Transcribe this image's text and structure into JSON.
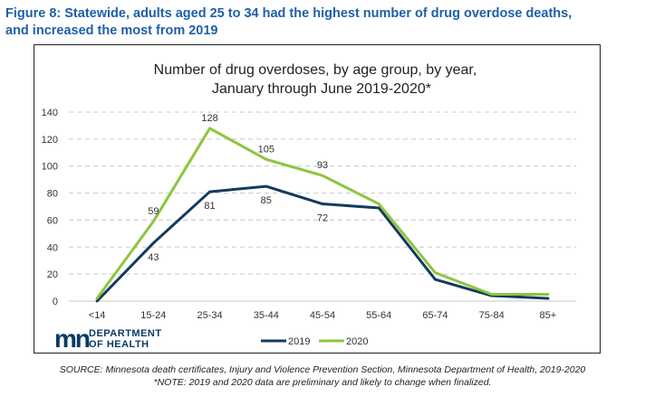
{
  "figure": {
    "heading_line1": "Figure 8: Statewide, adults aged 25 to 34 had the highest number of drug overdose deaths,",
    "heading_line2": "and increased the most from 2019"
  },
  "chart_data": {
    "type": "line",
    "title_line1": "Number of drug overdoses, by age group, by year,",
    "title_line2": "January through June 2019-2020*",
    "categories": [
      "<14",
      "15-24",
      "25-34",
      "35-44",
      "45-54",
      "55-64",
      "65-74",
      "75-84",
      "85+"
    ],
    "series": [
      {
        "name": "2019",
        "color": "#143a5e",
        "values": [
          0,
          43,
          81,
          85,
          72,
          69,
          16,
          4,
          2
        ]
      },
      {
        "name": "2020",
        "color": "#8cc63f",
        "values": [
          2,
          59,
          128,
          105,
          93,
          72,
          21,
          5,
          5
        ]
      }
    ],
    "data_labels": [
      {
        "series": "2020",
        "category": "15-24",
        "text": "59"
      },
      {
        "series": "2019",
        "category": "15-24",
        "text": "43"
      },
      {
        "series": "2020",
        "category": "25-34",
        "text": "128"
      },
      {
        "series": "2019",
        "category": "25-34",
        "text": "81"
      },
      {
        "series": "2020",
        "category": "35-44",
        "text": "105"
      },
      {
        "series": "2019",
        "category": "35-44",
        "text": "85"
      },
      {
        "series": "2020",
        "category": "45-54",
        "text": "93"
      },
      {
        "series": "2019",
        "category": "45-54",
        "text": "72"
      }
    ],
    "yticks": [
      0,
      20,
      40,
      60,
      80,
      100,
      120,
      140
    ],
    "ylim": [
      0,
      140
    ],
    "xlabel": "",
    "ylabel": "",
    "grid": true,
    "legend_position": "bottom"
  },
  "logo": {
    "mark": "mn",
    "line1": "DEPARTMENT",
    "line2": "OF HEALTH",
    "color": "#0a3a66"
  },
  "source": {
    "line1": "SOURCE: Minnesota death certificates, Injury and Violence Prevention Section, Minnesota Department of Health, 2019-2020",
    "line2": "*NOTE: 2019 and 2020 data are preliminary and likely to change when finalized."
  }
}
